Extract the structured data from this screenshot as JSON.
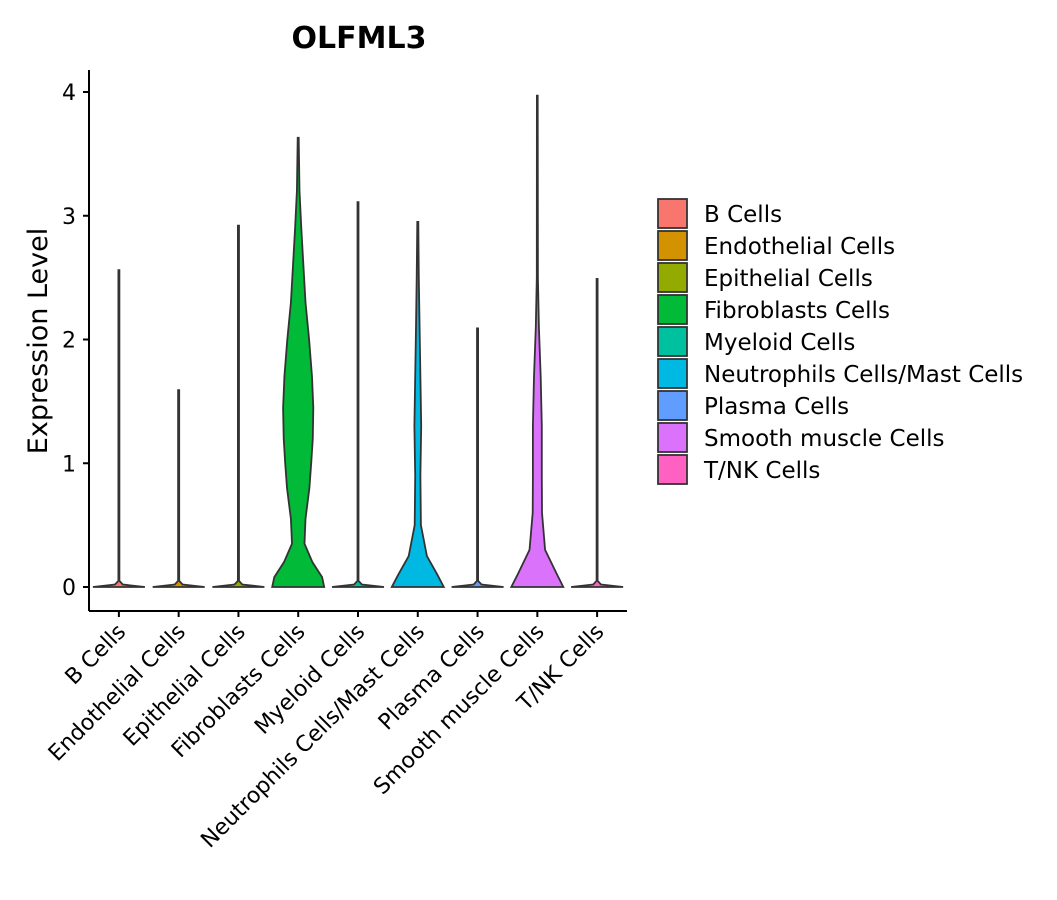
{
  "chart_data": {
    "type": "violin",
    "title": "OLFML3",
    "xlabel": "",
    "ylabel": "Expression Level",
    "ylim": [
      -0.2,
      4.2
    ],
    "yticks": [
      0,
      1,
      2,
      3,
      4
    ],
    "ytick_labels": [
      "0",
      "1",
      "2",
      "3",
      "4"
    ],
    "categories": [
      "B Cells",
      "Endothelial Cells",
      "Epithelial Cells",
      "Fibroblasts Cells",
      "Myeloid Cells",
      "Neutrophils Cells/Mast Cells",
      "Plasma Cells",
      "Smooth muscle Cells",
      "T/NK Cells"
    ],
    "colors": [
      "#F8766D",
      "#D39200",
      "#93AA00",
      "#00BA38",
      "#00C19F",
      "#00B9E3",
      "#619CFF",
      "#DB72FB",
      "#FF61C3"
    ],
    "max_values": [
      2.56,
      1.59,
      2.92,
      3.63,
      3.11,
      2.95,
      2.09,
      3.97,
      2.49
    ],
    "density_profiles": [
      [
        [
          0,
          1.0
        ],
        [
          0.02,
          0.15
        ],
        [
          0.05,
          0.02
        ],
        [
          2.56,
          0.02
        ]
      ],
      [
        [
          0,
          1.0
        ],
        [
          0.02,
          0.15
        ],
        [
          0.05,
          0.02
        ],
        [
          1.59,
          0.02
        ]
      ],
      [
        [
          0,
          1.0
        ],
        [
          0.02,
          0.15
        ],
        [
          0.05,
          0.02
        ],
        [
          2.92,
          0.02
        ]
      ],
      [
        [
          0,
          1.0
        ],
        [
          0.08,
          0.92
        ],
        [
          0.2,
          0.55
        ],
        [
          0.35,
          0.24
        ],
        [
          0.55,
          0.28
        ],
        [
          0.8,
          0.43
        ],
        [
          1.0,
          0.5
        ],
        [
          1.2,
          0.56
        ],
        [
          1.45,
          0.58
        ],
        [
          1.7,
          0.53
        ],
        [
          2.0,
          0.42
        ],
        [
          2.3,
          0.28
        ],
        [
          2.6,
          0.2
        ],
        [
          2.9,
          0.12
        ],
        [
          3.2,
          0.05
        ],
        [
          3.63,
          0.02
        ]
      ],
      [
        [
          0,
          1.0
        ],
        [
          0.02,
          0.15
        ],
        [
          0.05,
          0.02
        ],
        [
          3.11,
          0.02
        ]
      ],
      [
        [
          0,
          1.0
        ],
        [
          0.1,
          0.75
        ],
        [
          0.25,
          0.35
        ],
        [
          0.5,
          0.12
        ],
        [
          0.9,
          0.1
        ],
        [
          1.3,
          0.13
        ],
        [
          1.7,
          0.1
        ],
        [
          2.1,
          0.07
        ],
        [
          2.5,
          0.04
        ],
        [
          2.95,
          0.02
        ]
      ],
      [
        [
          0,
          1.0
        ],
        [
          0.02,
          0.15
        ],
        [
          0.05,
          0.02
        ],
        [
          2.09,
          0.02
        ]
      ],
      [
        [
          0,
          1.0
        ],
        [
          0.1,
          0.76
        ],
        [
          0.3,
          0.3
        ],
        [
          0.6,
          0.18
        ],
        [
          0.9,
          0.17
        ],
        [
          1.3,
          0.17
        ],
        [
          1.7,
          0.13
        ],
        [
          2.1,
          0.06
        ],
        [
          2.5,
          0.02
        ],
        [
          3.97,
          0.015
        ]
      ],
      [
        [
          0,
          1.0
        ],
        [
          0.02,
          0.15
        ],
        [
          0.05,
          0.02
        ],
        [
          2.49,
          0.02
        ]
      ]
    ],
    "legend": {
      "position": "right",
      "entries": [
        "B Cells",
        "Endothelial Cells",
        "Epithelial Cells",
        "Fibroblasts Cells",
        "Myeloid Cells",
        "Neutrophils Cells/Mast Cells",
        "Plasma Cells",
        "Smooth muscle Cells",
        "T/NK Cells"
      ]
    }
  }
}
